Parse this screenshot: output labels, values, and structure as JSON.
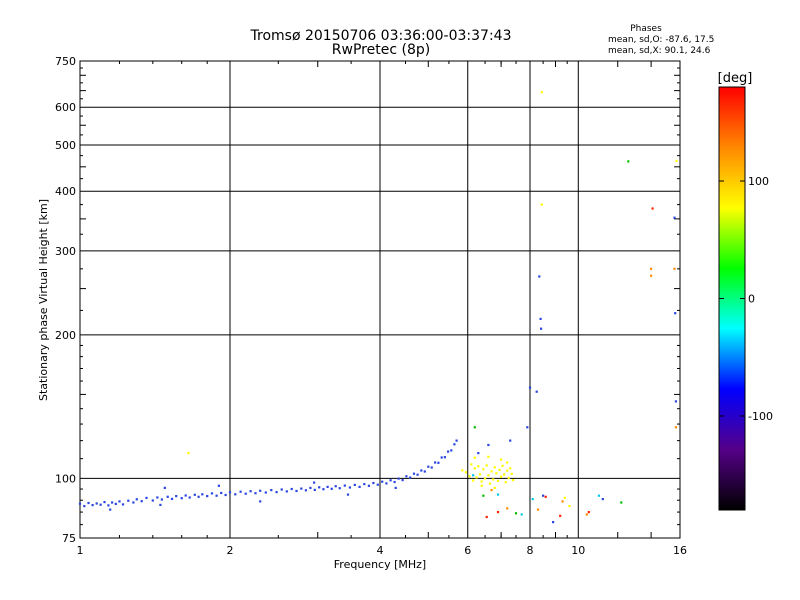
{
  "chart_data": {
    "type": "scatter",
    "title": "Tromsø 20150706 03:36:00-03:37:43",
    "subtitle": "RwPretec (8p)",
    "xlabel": "Frequency [MHz]",
    "ylabel": "Stationary phase Virtual Height [km]",
    "x_scale": "log",
    "y_scale": "log",
    "xlim": [
      1,
      16
    ],
    "ylim": [
      75,
      750
    ],
    "x_ticks": [
      1,
      2,
      4,
      6,
      8,
      10,
      16
    ],
    "y_ticks": [
      75,
      100,
      200,
      300,
      400,
      500,
      600,
      750
    ],
    "grid": true,
    "phase_info": {
      "title": "Phases",
      "line_o": "mean, sd,O:  -87.6, 17.5",
      "line_x": "mean, sd,X:  90.1, 24.6"
    },
    "colorbar": {
      "label": "[deg]",
      "range": [
        -180,
        180
      ],
      "ticks": [
        100,
        0,
        -100
      ],
      "colors": [
        "#ff0000",
        "#ff8800",
        "#ffff00",
        "#00ff00",
        "#00ffff",
        "#0000ff",
        "#550088",
        "#000000"
      ]
    },
    "series": [
      {
        "color": "#2a45e0",
        "points": [
          [
            1.0,
            88.5
          ],
          [
            1.02,
            87.5
          ],
          [
            1.04,
            88.8
          ],
          [
            1.06,
            87.9
          ],
          [
            1.08,
            88.6
          ],
          [
            1.1,
            88.1
          ],
          [
            1.12,
            89.2
          ],
          [
            1.14,
            87.8
          ],
          [
            1.16,
            89.0
          ],
          [
            1.18,
            88.4
          ],
          [
            1.2,
            89.5
          ],
          [
            1.22,
            88.2
          ],
          [
            1.25,
            89.8
          ],
          [
            1.28,
            89.0
          ],
          [
            1.3,
            90.4
          ],
          [
            1.33,
            89.6
          ],
          [
            1.36,
            91.0
          ],
          [
            1.4,
            89.9
          ],
          [
            1.43,
            91.2
          ],
          [
            1.46,
            90.3
          ],
          [
            1.5,
            91.5
          ],
          [
            1.53,
            90.6
          ],
          [
            1.56,
            91.8
          ],
          [
            1.6,
            90.9
          ],
          [
            1.63,
            92.1
          ],
          [
            1.66,
            91.2
          ],
          [
            1.7,
            92.4
          ],
          [
            1.73,
            91.5
          ],
          [
            1.76,
            92.6
          ],
          [
            1.8,
            91.8
          ],
          [
            1.84,
            93.0
          ],
          [
            1.88,
            92.0
          ],
          [
            1.92,
            93.2
          ],
          [
            1.96,
            92.3
          ],
          [
            2.0,
            93.5
          ],
          [
            2.05,
            92.6
          ],
          [
            2.1,
            93.8
          ],
          [
            2.15,
            92.9
          ],
          [
            2.2,
            94.0
          ],
          [
            2.25,
            93.1
          ],
          [
            2.3,
            94.2
          ],
          [
            2.36,
            93.4
          ],
          [
            2.42,
            94.5
          ],
          [
            2.48,
            93.6
          ],
          [
            2.54,
            94.8
          ],
          [
            2.6,
            93.9
          ],
          [
            2.66,
            95.0
          ],
          [
            2.72,
            94.1
          ],
          [
            2.78,
            95.2
          ],
          [
            2.84,
            94.4
          ],
          [
            2.9,
            95.5
          ],
          [
            2.96,
            94.6
          ],
          [
            3.02,
            95.8
          ],
          [
            3.08,
            94.9
          ],
          [
            3.14,
            96.0
          ],
          [
            3.2,
            95.1
          ],
          [
            3.26,
            96.3
          ],
          [
            3.32,
            95.4
          ],
          [
            3.4,
            96.6
          ],
          [
            3.48,
            95.7
          ],
          [
            3.56,
            96.9
          ],
          [
            3.64,
            96.0
          ],
          [
            3.72,
            97.3
          ],
          [
            3.8,
            96.5
          ],
          [
            3.88,
            97.8
          ],
          [
            3.96,
            97.0
          ],
          [
            4.04,
            98.4
          ],
          [
            4.12,
            97.6
          ],
          [
            4.2,
            99.1
          ],
          [
            4.28,
            98.3
          ],
          [
            4.36,
            99.9
          ],
          [
            4.44,
            99.2
          ],
          [
            4.52,
            101.0
          ],
          [
            4.6,
            100.4
          ],
          [
            4.68,
            102.3
          ],
          [
            4.76,
            101.8
          ],
          [
            4.84,
            103.9
          ],
          [
            4.92,
            103.4
          ],
          [
            5.0,
            105.8
          ],
          [
            5.08,
            105.4
          ],
          [
            5.16,
            108.0
          ],
          [
            5.24,
            107.8
          ],
          [
            5.32,
            110.6
          ],
          [
            5.4,
            110.8
          ],
          [
            5.48,
            113.8
          ],
          [
            5.56,
            114.5
          ],
          [
            5.64,
            117.9
          ],
          [
            5.7,
            120.0
          ],
          [
            1.15,
            86.0
          ],
          [
            1.45,
            88.0
          ],
          [
            1.48,
            95.5
          ],
          [
            1.9,
            96.5
          ],
          [
            2.3,
            89.5
          ],
          [
            2.95,
            98.0
          ],
          [
            3.45,
            92.5
          ],
          [
            4.3,
            95.5
          ],
          [
            6.3,
            113.0
          ],
          [
            6.6,
            117.5
          ],
          [
            7.3,
            120.0
          ],
          [
            7.9,
            128.0
          ],
          [
            8.0,
            155.0
          ],
          [
            8.25,
            152.0
          ],
          [
            8.35,
            265.0
          ],
          [
            8.4,
            216.0
          ],
          [
            8.42,
            206.0
          ],
          [
            8.5,
            92.0
          ],
          [
            8.9,
            81.0
          ],
          [
            11.2,
            90.5
          ],
          [
            15.6,
            352.0
          ],
          [
            15.65,
            222.0
          ],
          [
            15.7,
            145.0
          ]
        ]
      },
      {
        "color": "#ffff00",
        "points": [
          [
            5.85,
            104.0
          ],
          [
            5.95,
            103.0
          ],
          [
            6.05,
            101.0
          ],
          [
            6.1,
            107.0
          ],
          [
            6.15,
            99.0
          ],
          [
            6.2,
            105.0
          ],
          [
            6.25,
            100.5
          ],
          [
            6.3,
            106.0
          ],
          [
            6.35,
            102.0
          ],
          [
            6.4,
            98.5
          ],
          [
            6.45,
            104.5
          ],
          [
            6.5,
            100.0
          ],
          [
            6.55,
            106.5
          ],
          [
            6.6,
            101.5
          ],
          [
            6.65,
            97.5
          ],
          [
            6.7,
            103.5
          ],
          [
            6.75,
            99.5
          ],
          [
            6.8,
            105.5
          ],
          [
            6.85,
            102.5
          ],
          [
            6.9,
            98.8
          ],
          [
            6.95,
            104.2
          ],
          [
            7.0,
            100.8
          ],
          [
            7.05,
            106.2
          ],
          [
            7.1,
            101.9
          ],
          [
            7.15,
            98.2
          ],
          [
            7.2,
            103.8
          ],
          [
            7.25,
            100.2
          ],
          [
            7.3,
            105.0
          ],
          [
            7.35,
            102.2
          ],
          [
            7.4,
            99.2
          ],
          [
            6.2,
            110.5
          ],
          [
            6.6,
            111.0
          ],
          [
            7.0,
            109.5
          ],
          [
            7.2,
            108.0
          ],
          [
            6.4,
            96.5
          ],
          [
            6.8,
            95.5
          ],
          [
            1.65,
            113.0
          ],
          [
            8.45,
            645.0
          ],
          [
            8.45,
            375.0
          ],
          [
            9.4,
            91.0
          ],
          [
            9.6,
            87.5
          ],
          [
            15.75,
            463.0
          ]
        ]
      },
      {
        "color": "#ff8c00",
        "points": [
          [
            6.7,
            94.5
          ],
          [
            7.2,
            86.5
          ],
          [
            8.3,
            86.0
          ],
          [
            9.3,
            89.5
          ],
          [
            10.4,
            84.0
          ],
          [
            14.0,
            266.0
          ],
          [
            14.0,
            275.0
          ],
          [
            15.6,
            275.0
          ],
          [
            15.7,
            128.0
          ]
        ]
      },
      {
        "color": "#ff2000",
        "points": [
          [
            6.55,
            83.0
          ],
          [
            6.9,
            85.0
          ],
          [
            8.6,
            91.5
          ],
          [
            9.2,
            83.5
          ],
          [
            10.5,
            85.0
          ],
          [
            14.1,
            368.0
          ]
        ]
      },
      {
        "color": "#00c000",
        "points": [
          [
            6.2,
            128.0
          ],
          [
            6.45,
            92.0
          ],
          [
            7.5,
            84.5
          ],
          [
            12.6,
            462.0
          ],
          [
            12.2,
            89.0
          ]
        ]
      },
      {
        "color": "#00c8e8",
        "points": [
          [
            6.15,
            101.5
          ],
          [
            6.9,
            92.5
          ],
          [
            7.7,
            84.0
          ],
          [
            8.1,
            90.5
          ],
          [
            11.0,
            92.0
          ]
        ]
      }
    ]
  }
}
